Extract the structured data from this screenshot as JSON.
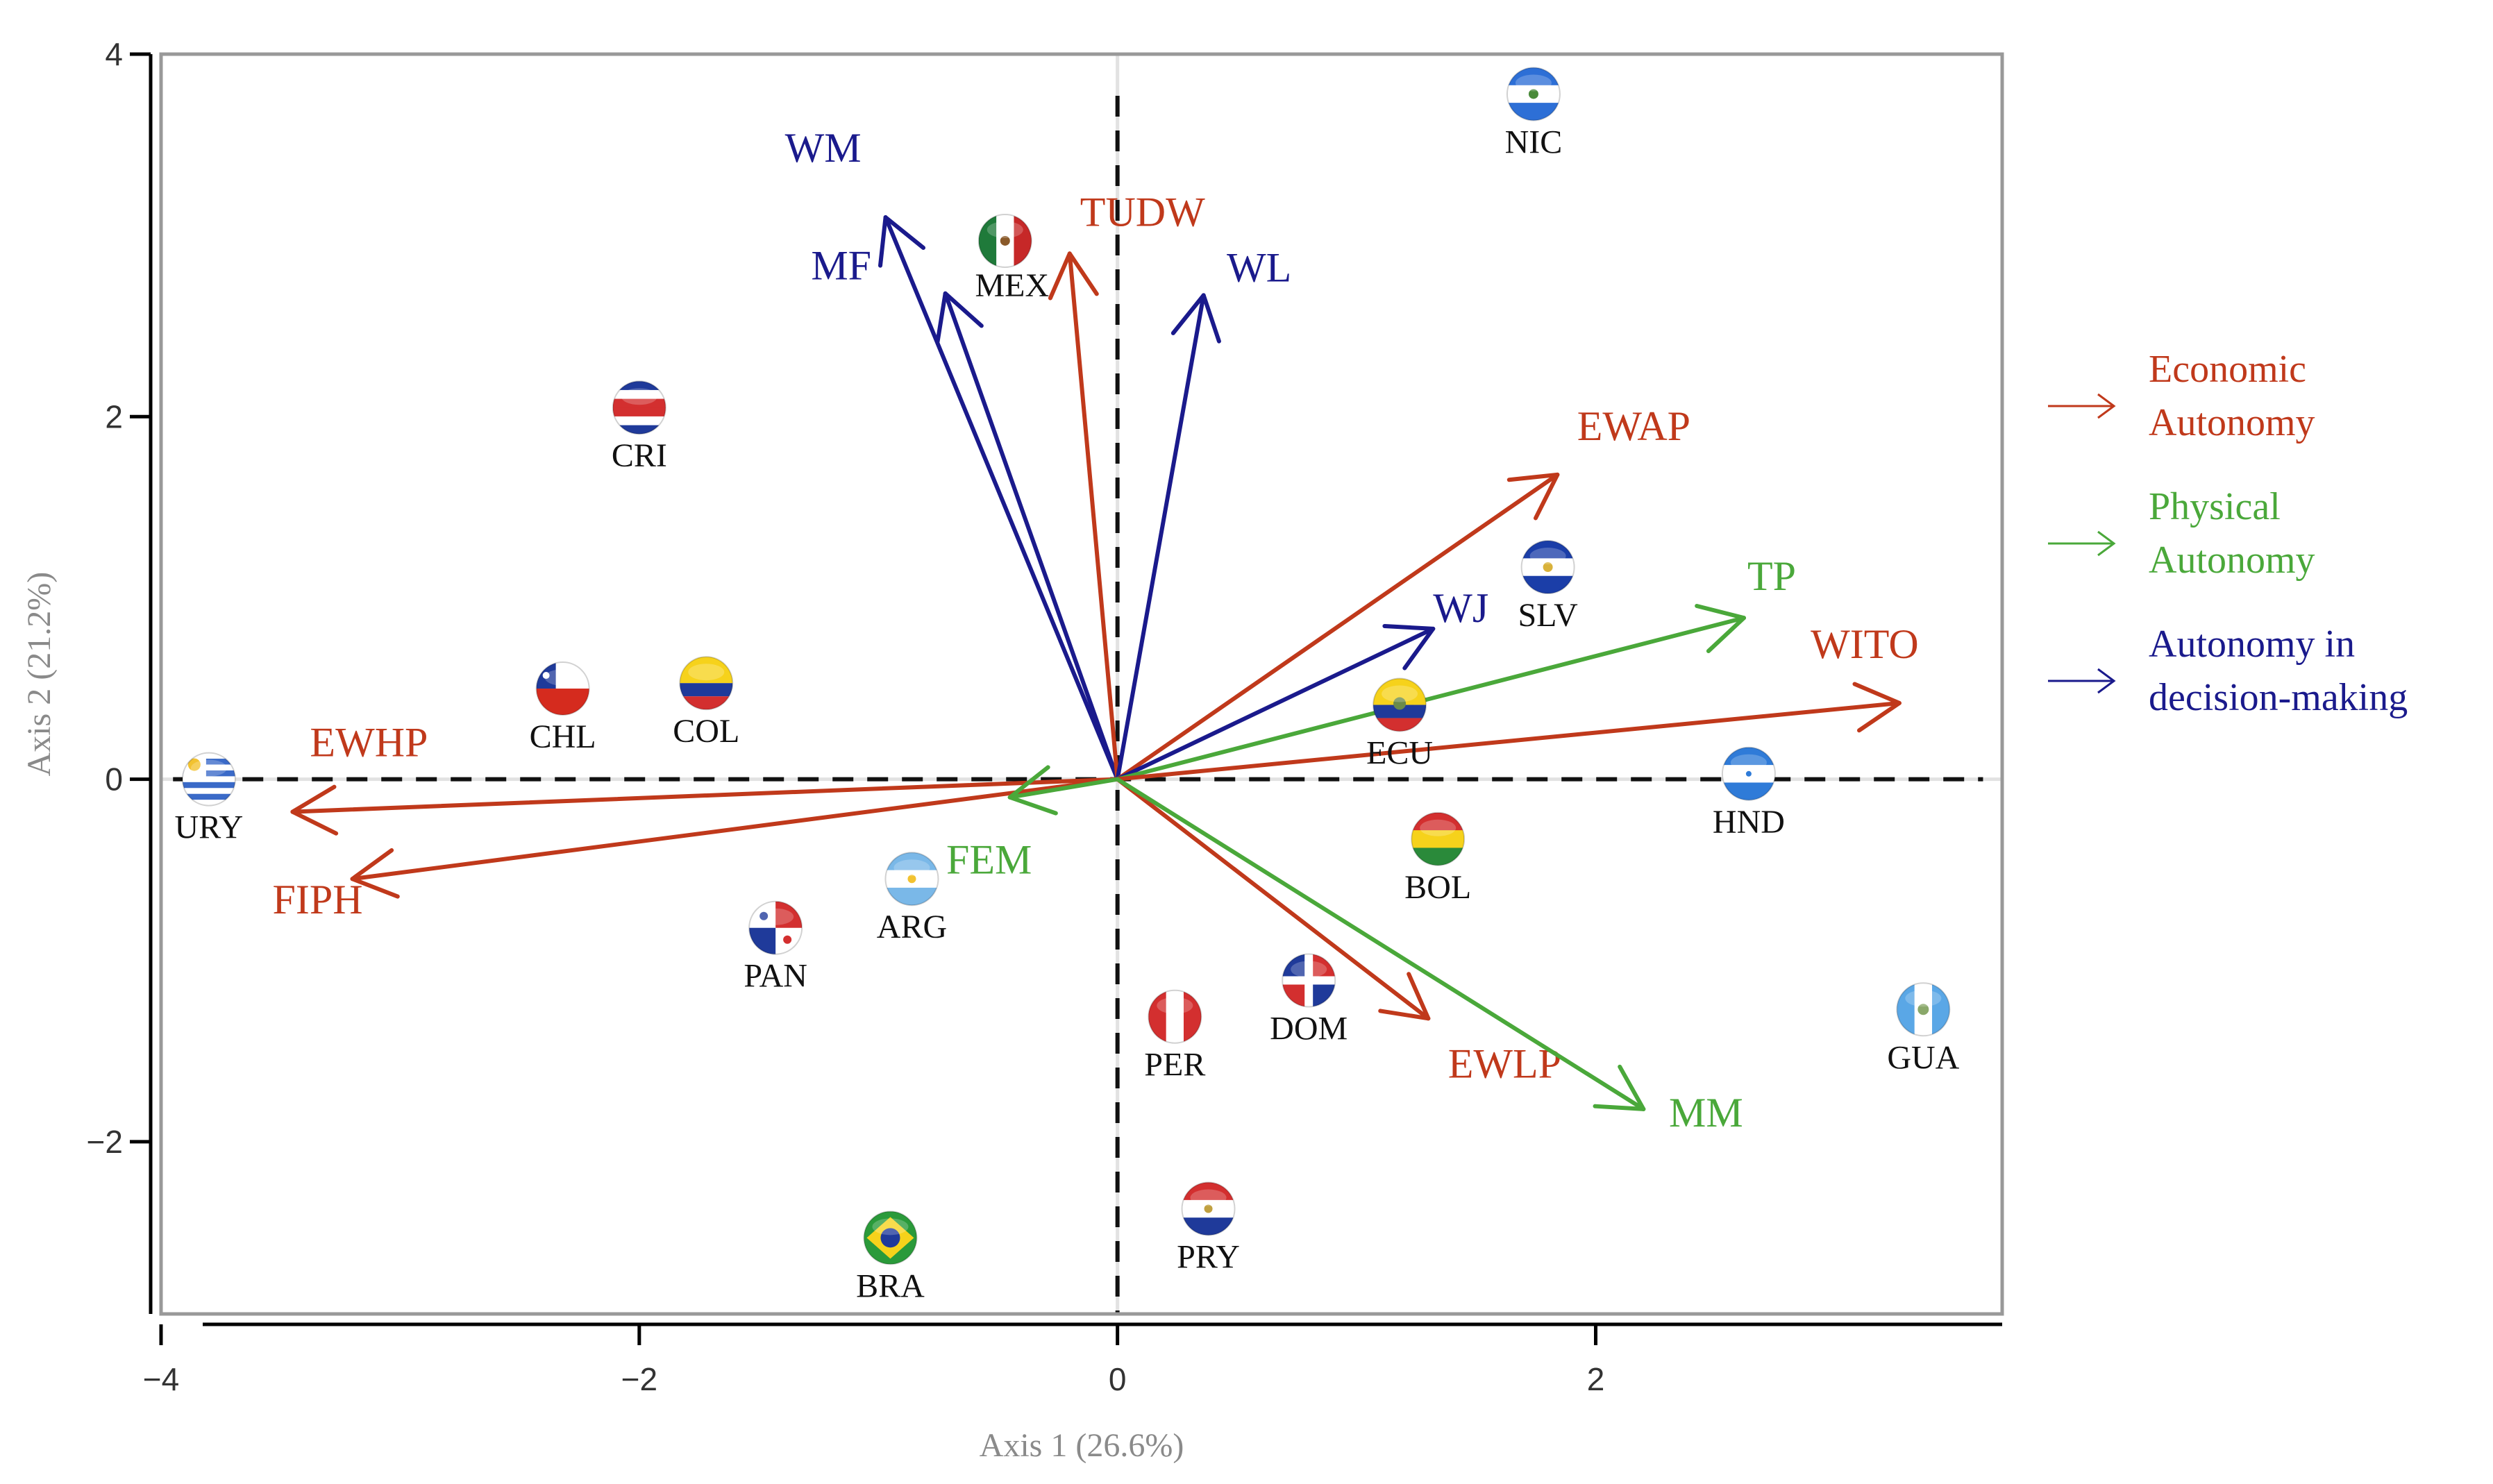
{
  "chart_data": {
    "type": "scatter",
    "subtype": "biplot",
    "xlabel": "Axis 1 (26.6%)",
    "ylabel": "Axis 2 (21.2%)",
    "xlim": [
      -4.0,
      3.7
    ],
    "ylim": [
      -2.95,
      4.0
    ],
    "xticks": [
      -4,
      -2,
      0,
      2
    ],
    "yticks": [
      -2,
      0,
      2,
      4
    ],
    "tick_labels_x": [
      "−4",
      "−2",
      "0",
      "2"
    ],
    "tick_labels_y": [
      "−2",
      "0",
      "2",
      "4"
    ],
    "legend": [
      {
        "group": "economic",
        "line1": "Economic",
        "line2": "Autonomy",
        "color": "#c0391b"
      },
      {
        "group": "physical",
        "line1": "Physical",
        "line2": "Autonomy",
        "color": "#4aa83a"
      },
      {
        "group": "decision",
        "line1": "Autonomy in",
        "line2": "decision-making",
        "color": "#1a1a8c"
      }
    ],
    "vectors": [
      {
        "name": "WM",
        "group": "decision",
        "x": -0.97,
        "y": 3.1
      },
      {
        "name": "MF",
        "group": "decision",
        "x": -0.72,
        "y": 2.68
      },
      {
        "name": "TUDW",
        "group": "economic",
        "x": -0.2,
        "y": 2.9
      },
      {
        "name": "WL",
        "group": "decision",
        "x": 0.36,
        "y": 2.67
      },
      {
        "name": "EWAP",
        "group": "economic",
        "x": 1.84,
        "y": 1.68
      },
      {
        "name": "WJ",
        "group": "decision",
        "x": 1.32,
        "y": 0.83
      },
      {
        "name": "TP",
        "group": "physical",
        "x": 2.62,
        "y": 0.89
      },
      {
        "name": "WITO",
        "group": "economic",
        "x": 3.27,
        "y": 0.42
      },
      {
        "name": "EWHP",
        "group": "economic",
        "x": -3.45,
        "y": -0.18
      },
      {
        "name": "FIPH",
        "group": "economic",
        "x": -3.2,
        "y": -0.55
      },
      {
        "name": "FEM",
        "group": "physical",
        "x": -0.45,
        "y": -0.1
      },
      {
        "name": "EWLP",
        "group": "economic",
        "x": 1.3,
        "y": -1.32
      },
      {
        "name": "MM",
        "group": "physical",
        "x": 2.2,
        "y": -1.82
      }
    ],
    "countries": [
      {
        "code": "NIC",
        "x": 1.74,
        "y": 3.78,
        "flag": "nicaragua"
      },
      {
        "code": "MEX",
        "x": -0.47,
        "y": 2.97,
        "flag": "mexico"
      },
      {
        "code": "CRI",
        "x": -2.0,
        "y": 2.05,
        "flag": "costa-rica"
      },
      {
        "code": "SLV",
        "x": 1.8,
        "y": 1.17,
        "flag": "el-salvador"
      },
      {
        "code": "CHL",
        "x": -2.32,
        "y": 0.5,
        "flag": "chile"
      },
      {
        "code": "COL",
        "x": -1.72,
        "y": 0.53,
        "flag": "colombia"
      },
      {
        "code": "ECU",
        "x": 1.18,
        "y": 0.41,
        "flag": "ecuador"
      },
      {
        "code": "URY",
        "x": -3.8,
        "y": 0.0,
        "flag": "uruguay"
      },
      {
        "code": "HND",
        "x": 2.64,
        "y": 0.03,
        "flag": "honduras"
      },
      {
        "code": "BOL",
        "x": 1.34,
        "y": -0.33,
        "flag": "bolivia"
      },
      {
        "code": "ARG",
        "x": -0.86,
        "y": -0.55,
        "flag": "argentina"
      },
      {
        "code": "PAN",
        "x": -1.43,
        "y": -0.82,
        "flag": "panama"
      },
      {
        "code": "DOM",
        "x": 0.8,
        "y": -1.11,
        "flag": "dominican-republic"
      },
      {
        "code": "PER",
        "x": 0.24,
        "y": -1.31,
        "flag": "peru"
      },
      {
        "code": "GUA",
        "x": 3.37,
        "y": -1.27,
        "flag": "guatemala"
      },
      {
        "code": "PRY",
        "x": 0.38,
        "y": -2.37,
        "flag": "paraguay"
      },
      {
        "code": "BRA",
        "x": -0.95,
        "y": -2.53,
        "flag": "brazil"
      }
    ]
  },
  "colors": {
    "economic": "#c0391b",
    "physical": "#4aa83a",
    "decision": "#1a1a8c",
    "frame": "#999999",
    "grid": "#e2e2e2"
  }
}
